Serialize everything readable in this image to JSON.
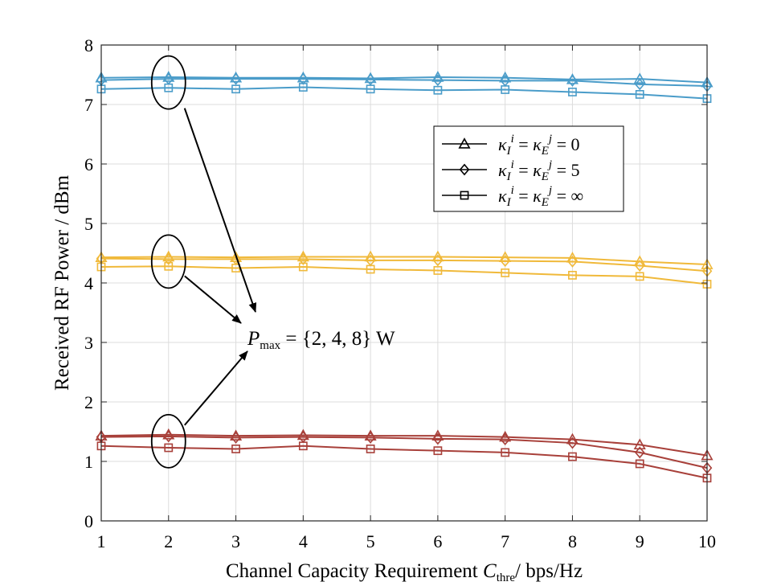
{
  "chart_data": {
    "type": "line",
    "title": "",
    "xlabel_main": "Channel Capacity Requirement ",
    "xlabel_var": "C",
    "xlabel_sub": "thre",
    "xlabel_unit": "/ bps/Hz",
    "ylabel": "Received RF Power / dBm",
    "x": [
      1,
      2,
      3,
      4,
      5,
      6,
      7,
      8,
      9,
      10
    ],
    "xlim": [
      1,
      10
    ],
    "ylim": [
      0,
      8
    ],
    "xticks": [
      "1",
      "2",
      "3",
      "4",
      "5",
      "6",
      "7",
      "8",
      "9",
      "10"
    ],
    "yticks": [
      "0",
      "1",
      "2",
      "3",
      "4",
      "5",
      "6",
      "7",
      "8"
    ],
    "grid": true,
    "legend_position": "top-right",
    "legend": [
      {
        "marker": "triangle",
        "label": "κ_I^i = κ_E^j = 0",
        "kappa_value": "0"
      },
      {
        "marker": "diamond",
        "label": "κ_I^i = κ_E^j = 5",
        "kappa_value": "5"
      },
      {
        "marker": "square",
        "label": "κ_I^i = κ_E^j = ∞",
        "kappa_value": "∞"
      }
    ],
    "annotation": {
      "var": "P",
      "sub": "max",
      "text": " = {2, 4, 8} W"
    },
    "colors": {
      "pmax_8": "#4a9cc9",
      "pmax_4": "#f0b93a",
      "pmax_2": "#a8403a"
    },
    "series": [
      {
        "name": "Pmax=8W, κ=0",
        "group": "pmax_8",
        "marker": "triangle",
        "values": [
          7.45,
          7.46,
          7.45,
          7.45,
          7.44,
          7.46,
          7.45,
          7.42,
          7.43,
          7.37
        ]
      },
      {
        "name": "Pmax=8W, κ=5",
        "group": "pmax_8",
        "marker": "diamond",
        "values": [
          7.41,
          7.43,
          7.43,
          7.43,
          7.42,
          7.41,
          7.4,
          7.4,
          7.34,
          7.31
        ]
      },
      {
        "name": "Pmax=8W, κ=∞",
        "group": "pmax_8",
        "marker": "square",
        "values": [
          7.26,
          7.28,
          7.26,
          7.29,
          7.26,
          7.24,
          7.25,
          7.21,
          7.17,
          7.1
        ]
      },
      {
        "name": "Pmax=4W, κ=0",
        "group": "pmax_4",
        "marker": "triangle",
        "values": [
          4.43,
          4.44,
          4.43,
          4.44,
          4.44,
          4.44,
          4.43,
          4.42,
          4.36,
          4.31
        ]
      },
      {
        "name": "Pmax=4W, κ=5",
        "group": "pmax_4",
        "marker": "diamond",
        "values": [
          4.41,
          4.4,
          4.4,
          4.4,
          4.38,
          4.38,
          4.37,
          4.36,
          4.29,
          4.2
        ]
      },
      {
        "name": "Pmax=4W, κ=∞",
        "group": "pmax_4",
        "marker": "square",
        "values": [
          4.27,
          4.28,
          4.25,
          4.27,
          4.23,
          4.21,
          4.17,
          4.13,
          4.11,
          3.98
        ]
      },
      {
        "name": "Pmax=2W, κ=0",
        "group": "pmax_2",
        "marker": "triangle",
        "values": [
          1.43,
          1.45,
          1.43,
          1.44,
          1.43,
          1.43,
          1.41,
          1.37,
          1.28,
          1.1
        ]
      },
      {
        "name": "Pmax=2W, κ=5",
        "group": "pmax_2",
        "marker": "diamond",
        "values": [
          1.41,
          1.42,
          1.4,
          1.41,
          1.4,
          1.38,
          1.37,
          1.31,
          1.15,
          0.89
        ]
      },
      {
        "name": "Pmax=2W, κ=∞",
        "group": "pmax_2",
        "marker": "square",
        "values": [
          1.26,
          1.23,
          1.21,
          1.26,
          1.21,
          1.18,
          1.15,
          1.08,
          0.96,
          0.72
        ]
      }
    ],
    "circled_x": 2,
    "circled_groups": [
      "pmax_8",
      "pmax_4",
      "pmax_2"
    ]
  }
}
